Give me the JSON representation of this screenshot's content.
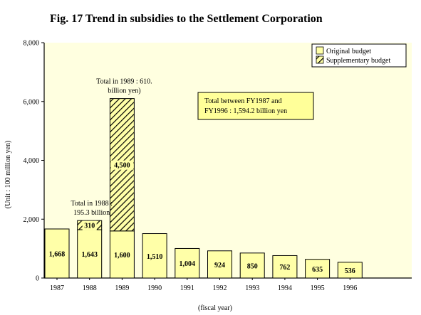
{
  "title": "Fig. 17 Trend in subsidies to the Settlement Corporation",
  "chart_data": {
    "type": "bar",
    "stacked": true,
    "title": "Fig. 17 Trend in subsidies to the Settlement Corporation",
    "xlabel": "(fiscal year)",
    "ylabel": "(Unit : 100 million yen)",
    "ylim": [
      0,
      8000
    ],
    "yticks": [
      0,
      2000,
      4000,
      6000,
      8000
    ],
    "ytick_labels": [
      "0",
      "2,000",
      "4,000",
      "6,000",
      "8,000"
    ],
    "categories": [
      "1987",
      "1988",
      "1989",
      "1990",
      "1991",
      "1992",
      "1993",
      "1994",
      "1995",
      "1996"
    ],
    "series": [
      {
        "name": "Original budget",
        "values": [
          1668,
          1643,
          1600,
          1510,
          1004,
          924,
          850,
          762,
          635,
          536
        ],
        "labels": [
          "1,668",
          "1,643",
          "1,600",
          "1,510",
          "1,004",
          "924",
          "850",
          "762",
          "635",
          "536"
        ],
        "fill": "#ffffa8",
        "pattern": "solid"
      },
      {
        "name": "Supplementary budget",
        "values": [
          0,
          310,
          4500,
          0,
          0,
          0,
          0,
          0,
          0,
          0
        ],
        "labels": [
          "",
          "310",
          "4,500",
          "",
          "",
          "",
          "",
          "",
          "",
          ""
        ],
        "fill": "#ffffa8",
        "pattern": "hatched"
      }
    ],
    "annotations": [
      {
        "category": "1988",
        "lines": [
          "Total in 1988 :",
          "195.3 billion"
        ]
      },
      {
        "category": "1989",
        "lines": [
          "Total in 1989 : 610.",
          "billion yen)"
        ]
      }
    ],
    "note_box": [
      "Total between FY1987 and",
      "FY1996 : 1,594.2 billion yen"
    ],
    "legend": {
      "position": "top-right",
      "items": [
        "Original budget",
        "Supplementary budget"
      ]
    },
    "plot_background": "#ffffe0",
    "bar_color": "#ffffa8",
    "note_box_color": "#ffff99",
    "grid": false
  }
}
